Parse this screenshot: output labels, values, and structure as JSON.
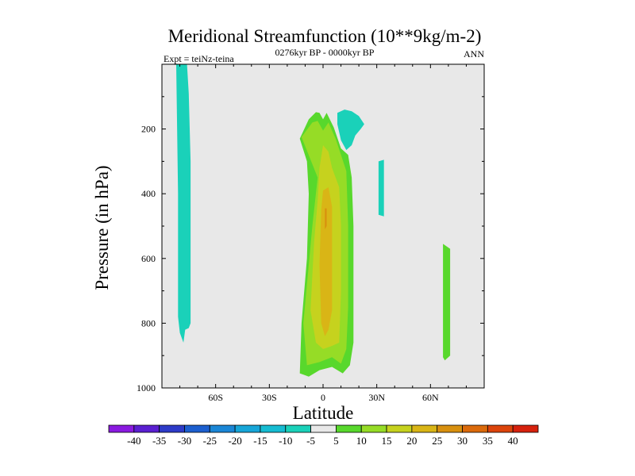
{
  "chart_data": {
    "type": "contour",
    "title": "Meridional Streamfunction (10**9kg/m-2)",
    "subtitle": "0276kyr BP - 0000kyr BP",
    "left_label": "Expt = teiNz-teina",
    "right_label": "ANN",
    "xlabel": "Latitude",
    "ylabel": "Pressure (in hPa)",
    "xlim": [
      -90,
      90
    ],
    "ylim": [
      1000,
      0
    ],
    "x_ticks": [
      {
        "value": -60,
        "label": "60S"
      },
      {
        "value": -30,
        "label": "30S"
      },
      {
        "value": 0,
        "label": "0"
      },
      {
        "value": 30,
        "label": "30N"
      },
      {
        "value": 60,
        "label": "60N"
      }
    ],
    "y_ticks": [
      {
        "value": 200,
        "label": "200"
      },
      {
        "value": 400,
        "label": "400"
      },
      {
        "value": 600,
        "label": "600"
      },
      {
        "value": 800,
        "label": "800"
      },
      {
        "value": 1000,
        "label": "1000"
      }
    ],
    "background_color": "#e8e8e8",
    "colorbar": {
      "labels": [
        "-40",
        "-35",
        "-30",
        "-25",
        "-20",
        "-15",
        "-10",
        "-5",
        "5",
        "10",
        "15",
        "20",
        "25",
        "30",
        "35",
        "40"
      ],
      "colors": [
        "#8a1ae0",
        "#5a1fd1",
        "#2d3bc8",
        "#1c5fcf",
        "#1a86d6",
        "#17a6d8",
        "#16bcd2",
        "#1ad1b9",
        "#e8e8e8",
        "#58d82c",
        "#96dc26",
        "#c6d21e",
        "#d9b516",
        "#d8900f",
        "#db6a0b",
        "#dc440b",
        "#d6210d"
      ]
    },
    "regions": [
      {
        "name": "sh-high-lat-negative",
        "level": "-10 to -5",
        "color": "#1ad1b9",
        "polygon": [
          [
            -81,
            1
          ],
          [
            -76,
            1
          ],
          [
            -75,
            90
          ],
          [
            -74,
            300
          ],
          [
            -74,
            600
          ],
          [
            -74,
            800
          ],
          [
            -75,
            815
          ],
          [
            -77,
            820
          ],
          [
            -78,
            860
          ],
          [
            -80,
            830
          ],
          [
            -81,
            780
          ],
          [
            -81,
            400
          ],
          [
            -82,
            1
          ]
        ]
      },
      {
        "name": "upper-nh-negative",
        "level": "-10 to -5",
        "color": "#1ad1b9",
        "polygon": [
          [
            8,
            150
          ],
          [
            12,
            140
          ],
          [
            16,
            145
          ],
          [
            20,
            160
          ],
          [
            23,
            185
          ],
          [
            21,
            200
          ],
          [
            18,
            220
          ],
          [
            16,
            250
          ],
          [
            13,
            265
          ],
          [
            10,
            235
          ],
          [
            8,
            185
          ]
        ]
      },
      {
        "name": "nh-midlat-negative-strip",
        "level": "-10 to -5",
        "color": "#1ad1b9",
        "polygon": [
          [
            31,
            300
          ],
          [
            34,
            295
          ],
          [
            34,
            470
          ],
          [
            31,
            465
          ]
        ]
      },
      {
        "name": "nh-high-lat-positive-strip",
        "level": "5 to 10",
        "color": "#58d82c",
        "polygon": [
          [
            67,
            555
          ],
          [
            71,
            570
          ],
          [
            71,
            900
          ],
          [
            68,
            915
          ],
          [
            67,
            905
          ]
        ]
      },
      {
        "name": "tropical-cell-5",
        "level": "5 to 10",
        "color": "#58d82c",
        "polygon": [
          [
            -13,
            230
          ],
          [
            -8,
            170
          ],
          [
            -4,
            148
          ],
          [
            -2,
            150
          ],
          [
            0,
            170
          ],
          [
            2,
            150
          ],
          [
            6,
            195
          ],
          [
            10,
            260
          ],
          [
            14,
            280
          ],
          [
            16,
            350
          ],
          [
            17,
            500
          ],
          [
            17,
            700
          ],
          [
            17,
            860
          ],
          [
            15,
            930
          ],
          [
            11,
            955
          ],
          [
            5,
            935
          ],
          [
            -2,
            945
          ],
          [
            -8,
            965
          ],
          [
            -13,
            955
          ],
          [
            -12,
            800
          ],
          [
            -9,
            600
          ],
          [
            -8,
            400
          ],
          [
            -9,
            300
          ]
        ]
      },
      {
        "name": "tropical-cell-10",
        "level": "10 to 15",
        "color": "#96dc26",
        "polygon": [
          [
            -12,
            225
          ],
          [
            -6,
            180
          ],
          [
            -3,
            175
          ],
          [
            0,
            205
          ],
          [
            3,
            180
          ],
          [
            7,
            230
          ],
          [
            10,
            280
          ],
          [
            13,
            330
          ],
          [
            14,
            500
          ],
          [
            14,
            750
          ],
          [
            13,
            880
          ],
          [
            10,
            925
          ],
          [
            5,
            905
          ],
          [
            -2,
            920
          ],
          [
            -9,
            930
          ],
          [
            -11,
            800
          ],
          [
            -6,
            500
          ],
          [
            -3,
            350
          ]
        ]
      },
      {
        "name": "tropical-cell-15",
        "level": "15 to 20",
        "color": "#c6d21e",
        "polygon": [
          [
            -2,
            320
          ],
          [
            0,
            250
          ],
          [
            3,
            270
          ],
          [
            5,
            320
          ],
          [
            9,
            380
          ],
          [
            10,
            500
          ],
          [
            10,
            700
          ],
          [
            9,
            860
          ],
          [
            5,
            870
          ],
          [
            0,
            880
          ],
          [
            -4,
            860
          ],
          [
            -7,
            760
          ],
          [
            -5,
            550
          ],
          [
            -3,
            420
          ]
        ]
      },
      {
        "name": "tropical-cell-20",
        "level": "20 to 25",
        "color": "#d9b516",
        "polygon": [
          [
            0,
            390
          ],
          [
            3,
            380
          ],
          [
            5,
            440
          ],
          [
            5,
            620
          ],
          [
            5,
            760
          ],
          [
            3,
            820
          ],
          [
            1,
            840
          ],
          [
            -1,
            800
          ],
          [
            -2,
            620
          ],
          [
            -1,
            450
          ]
        ]
      },
      {
        "name": "tropical-cell-25",
        "level": "25 to 30",
        "color": "#d8900f",
        "polygon": [
          [
            1,
            445
          ],
          [
            2,
            445
          ],
          [
            2,
            500
          ],
          [
            1,
            510
          ],
          [
            1,
            480
          ]
        ]
      }
    ]
  }
}
